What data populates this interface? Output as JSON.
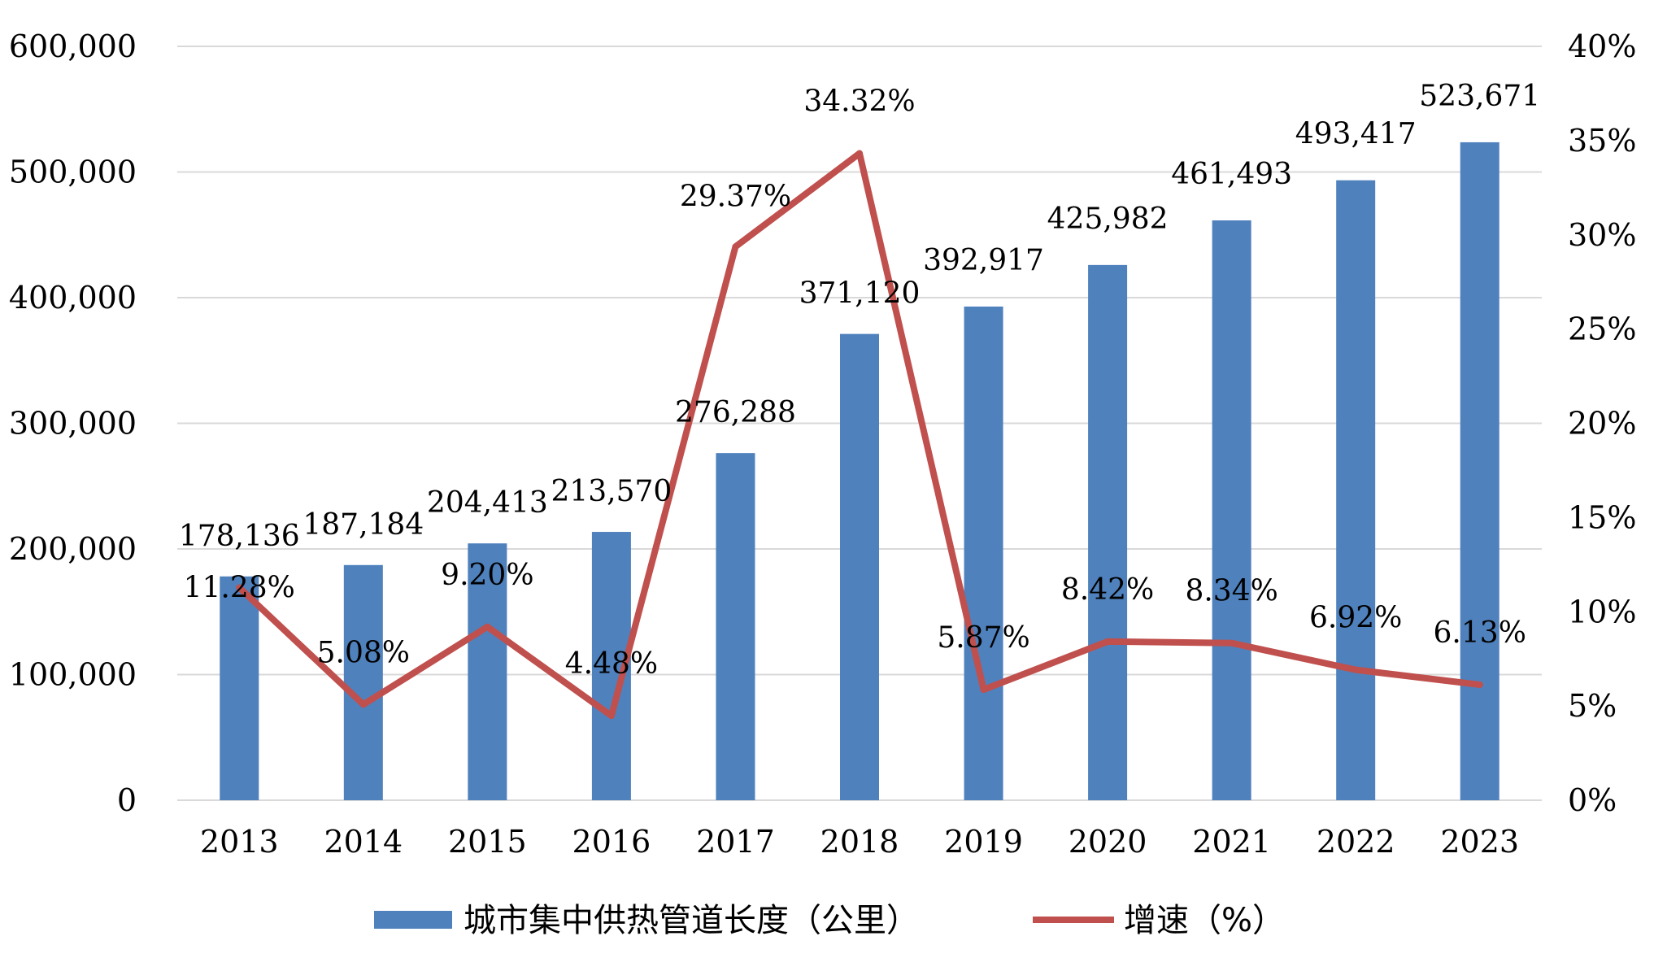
{
  "chart_data": {
    "type": "bar",
    "categories": [
      "2013",
      "2014",
      "2015",
      "2016",
      "2017",
      "2018",
      "2019",
      "2020",
      "2021",
      "2022",
      "2023"
    ],
    "series": [
      {
        "name": "城市集中供热管道长度（公里）",
        "type": "bar",
        "axis": "left",
        "color": "#4f81bd",
        "values": [
          178136,
          187184,
          204413,
          213570,
          276288,
          371120,
          392917,
          425982,
          461493,
          493417,
          523671
        ],
        "labels": [
          "178,136",
          "187,184",
          "204,413",
          "213,570",
          "276,288",
          "371,120",
          "392,917",
          "425,982",
          "461,493",
          "493,417",
          "523,671"
        ]
      },
      {
        "name": "增速（%）",
        "type": "line",
        "axis": "right",
        "color": "#c0504d",
        "values": [
          11.28,
          5.08,
          9.2,
          4.48,
          29.37,
          34.32,
          5.87,
          8.42,
          8.34,
          6.92,
          6.13
        ],
        "labels": [
          "11.28%",
          "5.08%",
          "9.20%",
          "4.48%",
          "29.37%",
          "34.32%",
          "5.87%",
          "8.42%",
          "8.34%",
          "6.92%",
          "6.13%"
        ]
      }
    ],
    "y_left": {
      "ylim": [
        0,
        600000
      ],
      "ticks": [
        "0",
        "100,000",
        "200,000",
        "300,000",
        "400,000",
        "500,000",
        "600,000"
      ]
    },
    "y_right": {
      "ylim": [
        0,
        40
      ],
      "ticks": [
        "0%",
        "5%",
        "10%",
        "15%",
        "20%",
        "25%",
        "30%",
        "35%",
        "40%"
      ]
    },
    "grid": true,
    "legend_position": "bottom"
  }
}
